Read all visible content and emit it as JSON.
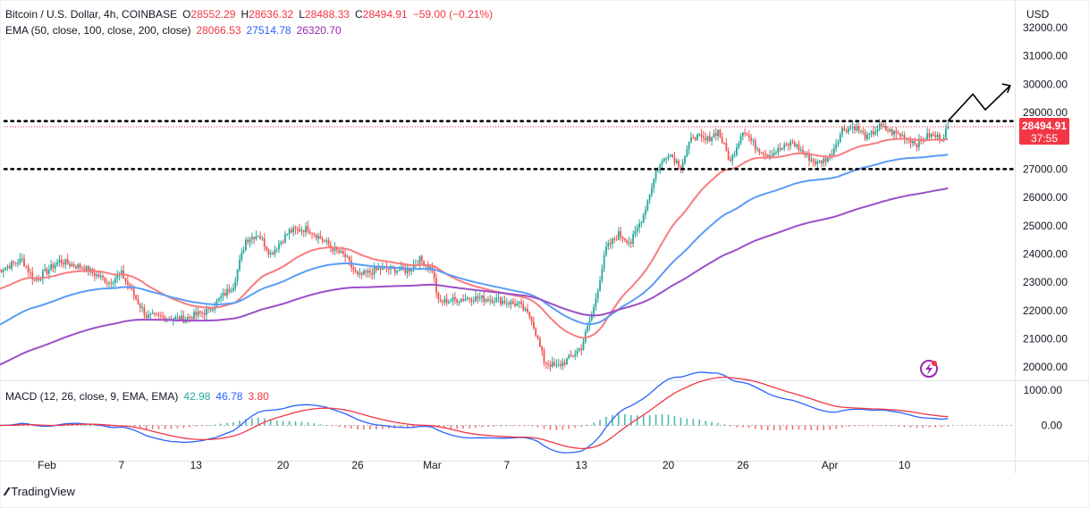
{
  "header": {
    "symbol": "Bitcoin / U.S. Dollar, 4h, COINBASE",
    "o_label": "O",
    "o": "28552.29",
    "h_label": "H",
    "h": "28636.32",
    "l_label": "L",
    "l": "28488.33",
    "c_label": "C",
    "c": "28494.91",
    "change": "−59.00 (−0.21%)"
  },
  "ema_legend": {
    "label": "EMA (50, close, 100, close, 200, close)",
    "ema50": "28066.53",
    "ema100": "27514.78",
    "ema200": "26320.70"
  },
  "macd_legend": {
    "label": "MACD (12, 26, close, 9, EMA, EMA)",
    "hist": "42.98",
    "macd": "46.78",
    "signal": "3.80"
  },
  "price_tag": {
    "value": "28494.91",
    "countdown": "37:55"
  },
  "brand": "TradingView",
  "colors": {
    "up": "#26a69a",
    "down": "#ef5350",
    "ema50": "#f77c80",
    "ema100": "#5b9cf6",
    "ema200": "#9c4fc8",
    "macd": "#2962ff",
    "signal": "#f23645",
    "tag": "#f23645"
  },
  "chart_data": [
    {
      "type": "candlestick",
      "title": "Bitcoin / U.S. Dollar, 4h, COINBASE",
      "currency_label": "USD",
      "y_ticks": [
        "20000.00",
        "21000.00",
        "22000.00",
        "23000.00",
        "24000.00",
        "25000.00",
        "26000.00",
        "27000.00",
        "28000.00",
        "29000.00",
        "30000.00",
        "31000.00",
        "32000.00"
      ],
      "ylim": [
        19650,
        32500
      ],
      "x_ticks": [
        "Feb",
        "7",
        "13",
        "20",
        "26",
        "Mar",
        "7",
        "13",
        "20",
        "26",
        "Apr",
        "10"
      ],
      "close_path": [
        {
          "d": 0,
          "v": 23400
        },
        {
          "d": 2,
          "v": 23800
        },
        {
          "d": 3,
          "v": 23050
        },
        {
          "d": 5,
          "v": 23750
        },
        {
          "d": 7,
          "v": 23500
        },
        {
          "d": 9,
          "v": 23000
        },
        {
          "d": 10,
          "v": 23300
        },
        {
          "d": 12,
          "v": 21800
        },
        {
          "d": 15,
          "v": 21700
        },
        {
          "d": 17,
          "v": 22000
        },
        {
          "d": 19,
          "v": 22900
        },
        {
          "d": 20,
          "v": 24500
        },
        {
          "d": 21,
          "v": 24700
        },
        {
          "d": 22,
          "v": 24000
        },
        {
          "d": 23.5,
          "v": 24800
        },
        {
          "d": 25,
          "v": 24900
        },
        {
          "d": 27,
          "v": 24200
        },
        {
          "d": 28,
          "v": 23900
        },
        {
          "d": 29,
          "v": 23200
        },
        {
          "d": 31,
          "v": 23500
        },
        {
          "d": 33,
          "v": 23400
        },
        {
          "d": 34,
          "v": 23800
        },
        {
          "d": 35,
          "v": 23450
        },
        {
          "d": 35.5,
          "v": 22300
        },
        {
          "d": 38,
          "v": 22450
        },
        {
          "d": 40,
          "v": 22400
        },
        {
          "d": 42,
          "v": 22200
        },
        {
          "d": 43,
          "v": 21700
        },
        {
          "d": 44,
          "v": 20200
        },
        {
          "d": 45,
          "v": 20000
        },
        {
          "d": 46,
          "v": 20300
        },
        {
          "d": 47,
          "v": 20700
        },
        {
          "d": 48,
          "v": 22100
        },
        {
          "d": 49,
          "v": 24200
        },
        {
          "d": 50,
          "v": 24700
        },
        {
          "d": 51,
          "v": 24400
        },
        {
          "d": 52,
          "v": 25400
        },
        {
          "d": 53,
          "v": 26900
        },
        {
          "d": 54,
          "v": 27600
        },
        {
          "d": 55,
          "v": 27100
        },
        {
          "d": 56,
          "v": 28200
        },
        {
          "d": 57,
          "v": 28000
        },
        {
          "d": 58,
          "v": 28350
        },
        {
          "d": 59,
          "v": 27250
        },
        {
          "d": 60,
          "v": 28400
        },
        {
          "d": 61,
          "v": 27800
        },
        {
          "d": 62,
          "v": 27500
        },
        {
          "d": 63,
          "v": 27700
        },
        {
          "d": 64,
          "v": 27950
        },
        {
          "d": 65,
          "v": 27500
        },
        {
          "d": 66,
          "v": 27200
        },
        {
          "d": 67,
          "v": 27450
        },
        {
          "d": 68,
          "v": 28400
        },
        {
          "d": 69,
          "v": 28500
        },
        {
          "d": 70,
          "v": 28100
        },
        {
          "d": 71,
          "v": 28500
        },
        {
          "d": 72,
          "v": 28300
        },
        {
          "d": 73,
          "v": 28150
        },
        {
          "d": 74,
          "v": 27900
        },
        {
          "d": 75,
          "v": 28200
        },
        {
          "d": 76,
          "v": 28100
        },
        {
          "d": 76.5,
          "v": 28494.91
        }
      ],
      "candle_days": 76.5,
      "ema_series": [
        {
          "period": 50,
          "start": 22700,
          "end": 28066.53
        },
        {
          "period": 100,
          "start": 21400,
          "end": 27514.78
        },
        {
          "period": 200,
          "start": 20000,
          "end": 26320.7
        }
      ],
      "levels": [
        28700,
        27000
      ],
      "projection": [
        [
          76.5,
          28700
        ],
        [
          78.5,
          29650
        ],
        [
          79.5,
          29100
        ],
        [
          81.5,
          29950
        ]
      ]
    },
    {
      "type": "macd",
      "title": "MACD (12, 26, close, 9, EMA, EMA)",
      "y_ticks": [
        "0.00",
        "1000.00"
      ],
      "ylim": [
        -850,
        1150
      ]
    }
  ]
}
